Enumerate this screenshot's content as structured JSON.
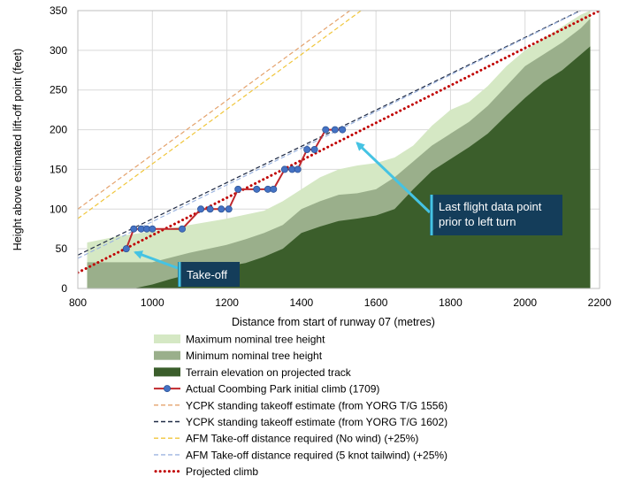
{
  "chart_data": {
    "type": "area",
    "title": "",
    "xlabel": "Distance from start of runway 07 (metres)",
    "ylabel": "Height above estimated lift-off point (feet)",
    "xlim": [
      800,
      2200
    ],
    "ylim": [
      0,
      350
    ],
    "grid": true,
    "x_ticks": [
      "800",
      "1000",
      "1200",
      "1400",
      "1600",
      "1800",
      "2000",
      "2200"
    ],
    "y_ticks": [
      "0",
      "50",
      "100",
      "150",
      "200",
      "250",
      "300",
      "350"
    ],
    "series": [
      {
        "name": "Maximum nominal tree height",
        "kind": "area",
        "color": "#d5e8c4",
        "x": [
          825,
          900,
          1000,
          1100,
          1200,
          1300,
          1350,
          1400,
          1450,
          1500,
          1550,
          1600,
          1650,
          1700,
          1750,
          1800,
          1850,
          1900,
          1950,
          2000,
          2050,
          2100,
          2150,
          2175
        ],
        "y": [
          58,
          65,
          72,
          80,
          88,
          98,
          110,
          125,
          140,
          150,
          155,
          158,
          165,
          180,
          205,
          225,
          235,
          255,
          280,
          300,
          315,
          330,
          345,
          350
        ]
      },
      {
        "name": "Minimum nominal tree height",
        "kind": "area",
        "color": "#9aaf8b",
        "x": [
          825,
          900,
          1000,
          1100,
          1200,
          1250,
          1300,
          1350,
          1400,
          1450,
          1500,
          1550,
          1600,
          1650,
          1700,
          1750,
          1800,
          1850,
          1900,
          1950,
          2000,
          2050,
          2100,
          2150,
          2175
        ],
        "y": [
          33,
          33,
          33,
          45,
          55,
          62,
          70,
          80,
          100,
          110,
          118,
          120,
          125,
          140,
          160,
          180,
          195,
          210,
          230,
          255,
          280,
          295,
          310,
          328,
          340
        ]
      },
      {
        "name": "Terrain elevation on projected track",
        "kind": "area",
        "color": "#3b5e2b",
        "x": [
          825,
          900,
          950,
          1000,
          1050,
          1100,
          1150,
          1200,
          1250,
          1300,
          1350,
          1400,
          1450,
          1500,
          1550,
          1600,
          1650,
          1700,
          1750,
          1800,
          1850,
          1900,
          1950,
          2000,
          2050,
          2100,
          2150,
          2175
        ],
        "y": [
          0,
          0,
          0,
          5,
          12,
          18,
          25,
          28,
          32,
          40,
          50,
          70,
          78,
          85,
          88,
          92,
          100,
          125,
          148,
          163,
          178,
          195,
          218,
          240,
          260,
          275,
          295,
          305
        ]
      },
      {
        "name": "Actual Coombing Park initial climb (1709)",
        "kind": "line-markers",
        "color": "#c0282d",
        "marker_color": "#4472c4",
        "x": [
          930,
          950,
          970,
          985,
          1000,
          1080,
          1130,
          1155,
          1185,
          1205,
          1230,
          1280,
          1310,
          1325,
          1355,
          1375,
          1390,
          1415,
          1435,
          1465,
          1490,
          1510
        ],
        "y": [
          50,
          75,
          75,
          75,
          75,
          75,
          100,
          100,
          100,
          100,
          125,
          125,
          125,
          125,
          150,
          150,
          150,
          175,
          175,
          200,
          200,
          200
        ]
      },
      {
        "name": "YCPK standing takeoff estimate (from YORG T/G 1556)",
        "kind": "dashed-line",
        "color": "#e4a26d",
        "x": [
          800,
          1530
        ],
        "y": [
          100,
          350
        ]
      },
      {
        "name": "YCPK standing takeoff estimate (from YORG T/G 1602)",
        "kind": "dashed-line",
        "color": "#1f2a44",
        "x": [
          800,
          2148
        ],
        "y": [
          42,
          350
        ]
      },
      {
        "name": "AFM Take-off distance required (No wind) (+25%)",
        "kind": "dashed-line",
        "color": "#f0c63c",
        "x": [
          800,
          1560
        ],
        "y": [
          88,
          350
        ]
      },
      {
        "name": "AFM Take-off distance required (5 knot tailwind) (+25%)",
        "kind": "dashed-line",
        "color": "#9db5e0",
        "x": [
          800,
          2150
        ],
        "y": [
          38,
          350
        ]
      },
      {
        "name": "Projected climb",
        "kind": "dotted-line",
        "color": "#c00000",
        "x": [
          800,
          2200
        ],
        "y": [
          20,
          350
        ]
      }
    ],
    "annotations": [
      {
        "name": "takeoff-callout",
        "text": "Take-off",
        "point_x": 935,
        "point_y": 50
      },
      {
        "name": "last-point-callout",
        "text_lines": [
          "Last flight data point",
          "prior to left turn"
        ],
        "point_x": 1535,
        "point_y": 190
      }
    ],
    "legend_placement": "bottom"
  }
}
